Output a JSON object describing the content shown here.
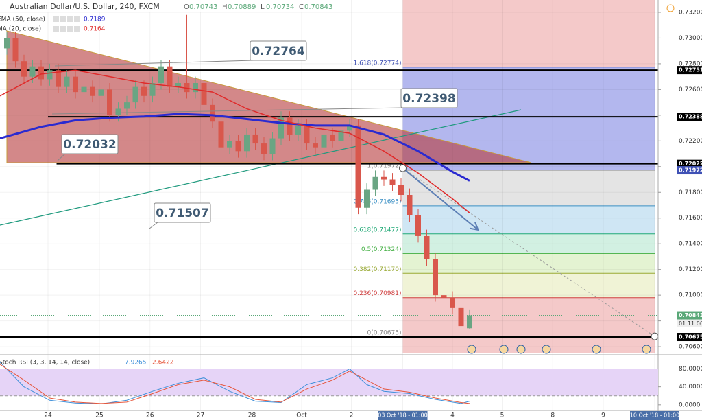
{
  "header": {
    "title": "Australian Dollar/U.S. Dollar, 240, FXCM",
    "ohlc": [
      {
        "key": "O",
        "value": 0.70743
      },
      {
        "key": "H",
        "value": 0.70889
      },
      {
        "key": "L",
        "value": 0.70734
      },
      {
        "key": "C",
        "value": 0.70843
      }
    ]
  },
  "indicators": [
    {
      "label": "EMA (50, close)",
      "value": 0.7189,
      "color": "#2a2ad0"
    },
    {
      "label": "MA (20, close)",
      "value": 0.7164,
      "color": "#e02a2a"
    }
  ],
  "chart_data": {
    "type": "candlestick",
    "xlim": [
      -0.8,
      76
    ],
    "ylim": [
      0.70547,
      0.73296
    ],
    "xticks": [
      {
        "value": 4.8,
        "label": "24"
      },
      {
        "value": 10.8,
        "label": "25"
      },
      {
        "value": 16.7,
        "label": "26"
      },
      {
        "value": 22.6,
        "label": "27"
      },
      {
        "value": 28.6,
        "label": "28"
      },
      {
        "value": 34.4,
        "label": "Oct"
      },
      {
        "value": 40.2,
        "label": "2"
      },
      {
        "value": 46.2,
        "label": "03 Oct '18 - 01:00"
      },
      {
        "value": 52,
        "label": "4"
      },
      {
        "value": 57.8,
        "label": "5"
      },
      {
        "value": 63.7,
        "label": "8"
      },
      {
        "value": 69.6,
        "label": "9"
      },
      {
        "value": 75.6,
        "label": "10 Oct '18 - 01:00"
      }
    ],
    "yticks": [
      {
        "value": 0.732,
        "label": "0.73200"
      },
      {
        "value": 0.73,
        "label": "0.73000"
      },
      {
        "value": 0.728,
        "label": "0.72800"
      },
      {
        "value": 0.726,
        "label": "0.72600"
      },
      {
        "value": 0.724,
        "label": "0.72400"
      },
      {
        "value": 0.722,
        "label": "0.72200"
      },
      {
        "value": 0.72,
        "label": "0.72000"
      },
      {
        "value": 0.718,
        "label": "0.71800"
      },
      {
        "value": 0.716,
        "label": "0.71600"
      },
      {
        "value": 0.714,
        "label": "0.71400"
      },
      {
        "value": 0.712,
        "label": "0.71200"
      },
      {
        "value": 0.71,
        "label": "0.71000"
      },
      {
        "value": 0.708,
        "label": "0.70800"
      },
      {
        "value": 0.706,
        "label": "0.70600"
      }
    ],
    "up_color": "#6aa583",
    "down_color": "#d9574c",
    "x": [
      0,
      1,
      2,
      3,
      4,
      5,
      6,
      7,
      8,
      9,
      10,
      11,
      12,
      13,
      14,
      15,
      16,
      17,
      18,
      19,
      20,
      21,
      22,
      23,
      24,
      25,
      26,
      27,
      28,
      29,
      30,
      31,
      32,
      33,
      34,
      35,
      36,
      37,
      38,
      39,
      40,
      41,
      42,
      43,
      44,
      45,
      46,
      47,
      48,
      49,
      50,
      51,
      52,
      53,
      54
    ],
    "open": [
      0.7292,
      0.73,
      0.7282,
      0.727,
      0.7278,
      0.7268,
      0.7275,
      0.7262,
      0.727,
      0.7258,
      0.7262,
      0.7255,
      0.726,
      0.724,
      0.7245,
      0.725,
      0.7262,
      0.7255,
      0.7265,
      0.7278,
      0.7262,
      0.7265,
      0.7258,
      0.7265,
      0.7248,
      0.7235,
      0.7215,
      0.722,
      0.7212,
      0.7225,
      0.7218,
      0.721,
      0.7222,
      0.7238,
      0.7225,
      0.7232,
      0.7218,
      0.7215,
      0.7225,
      0.722,
      0.7228,
      0.7232,
      0.7168,
      0.7182,
      0.7192,
      0.719,
      0.7186,
      0.7178,
      0.7162,
      0.7146,
      0.7128,
      0.71,
      0.7098,
      0.709,
      0.70743
    ],
    "high": [
      0.7305,
      0.7305,
      0.7287,
      0.7283,
      0.7283,
      0.728,
      0.728,
      0.7275,
      0.7275,
      0.7267,
      0.7267,
      0.7265,
      0.7265,
      0.725,
      0.7255,
      0.7267,
      0.7267,
      0.727,
      0.7283,
      0.7283,
      0.727,
      0.7318,
      0.727,
      0.727,
      0.7253,
      0.724,
      0.7225,
      0.7225,
      0.723,
      0.723,
      0.7223,
      0.7227,
      0.7243,
      0.7243,
      0.7237,
      0.7237,
      0.7223,
      0.723,
      0.723,
      0.7233,
      0.7237,
      0.7237,
      0.7187,
      0.7197,
      0.7197,
      0.7195,
      0.7191,
      0.7183,
      0.7167,
      0.7151,
      0.7133,
      0.7105,
      0.7103,
      0.7095,
      0.70889
    ],
    "low": [
      0.7287,
      0.7277,
      0.7265,
      0.7265,
      0.7263,
      0.7263,
      0.7257,
      0.7257,
      0.7253,
      0.7253,
      0.725,
      0.725,
      0.7235,
      0.7235,
      0.724,
      0.7245,
      0.725,
      0.725,
      0.726,
      0.7257,
      0.7257,
      0.7253,
      0.7253,
      0.7243,
      0.723,
      0.721,
      0.721,
      0.7207,
      0.7207,
      0.7213,
      0.7205,
      0.7205,
      0.7217,
      0.722,
      0.722,
      0.7213,
      0.721,
      0.721,
      0.7215,
      0.7215,
      0.7223,
      0.7163,
      0.7163,
      0.7177,
      0.7185,
      0.7181,
      0.7173,
      0.7157,
      0.7141,
      0.7123,
      0.7095,
      0.7093,
      0.7085,
      0.7071,
      0.70734
    ],
    "close": [
      0.73,
      0.7282,
      0.727,
      0.7278,
      0.7268,
      0.7275,
      0.7262,
      0.727,
      0.7258,
      0.7262,
      0.7255,
      0.726,
      0.724,
      0.7245,
      0.725,
      0.7262,
      0.7255,
      0.7265,
      0.7278,
      0.7262,
      0.7265,
      0.7258,
      0.7265,
      0.7248,
      0.7235,
      0.7215,
      0.722,
      0.7212,
      0.7225,
      0.7218,
      0.721,
      0.7222,
      0.7238,
      0.7225,
      0.7232,
      0.7218,
      0.7215,
      0.7225,
      0.722,
      0.7228,
      0.7232,
      0.7168,
      0.7182,
      0.7192,
      0.719,
      0.7186,
      0.7178,
      0.7162,
      0.7146,
      0.7128,
      0.71,
      0.7098,
      0.709,
      0.7076,
      0.70843
    ],
    "series": [
      {
        "name": "EMA (50, close)",
        "color": "#2a2ad0",
        "x": [
          -0.8,
          4,
          8,
          12,
          16,
          20,
          24,
          28,
          32,
          36,
          40,
          44,
          48,
          52,
          54
        ],
        "values": [
          0.7222,
          0.7231,
          0.7236,
          0.7238,
          0.7239,
          0.7241,
          0.724,
          0.7237,
          0.7234,
          0.7232,
          0.7232,
          0.7225,
          0.7212,
          0.7196,
          0.7189
        ]
      },
      {
        "name": "MA (20, close)",
        "color": "#e02a2a",
        "x": [
          -0.8,
          4,
          8,
          12,
          16,
          20,
          24,
          28,
          32,
          36,
          40,
          44,
          48,
          52,
          54
        ],
        "values": [
          0.7255,
          0.7272,
          0.7275,
          0.727,
          0.7265,
          0.7262,
          0.7258,
          0.7245,
          0.7236,
          0.723,
          0.7226,
          0.7212,
          0.7195,
          0.7175,
          0.7164
        ]
      }
    ],
    "triangle": {
      "x": [
        0,
        61.2,
        0
      ],
      "price": [
        0.73056,
        0.72031,
        0.72031
      ],
      "color": "#b5383a"
    },
    "trendline": {
      "x": [
        -0.8,
        60
      ],
      "price": [
        0.71545,
        0.72442
      ],
      "color": "#1f9a7e"
    },
    "arrow": {
      "x": [
        46.2,
        55
      ],
      "price": [
        0.71988,
        0.71508
      ],
      "color": "#5d7fb5"
    },
    "dashed": {
      "x": [
        46.2,
        75.6
      ],
      "price": [
        0.71988,
        0.7068
      ],
      "color": "#999999"
    },
    "hlines": [
      {
        "price": 0.72751,
        "x": [
          -0.8,
          76
        ]
      },
      {
        "price": 0.72388,
        "x": [
          4.8,
          76
        ]
      },
      {
        "price": 0.72022,
        "x": [
          5.8,
          76
        ]
      },
      {
        "price": 0.70675,
        "x": [
          -0.8,
          76
        ]
      }
    ],
    "fib": {
      "x": [
        46.2,
        75.6
      ],
      "top_fill": "#f4c9c9",
      "bottom_fill": "#f4c9c9",
      "levels": [
        {
          "label": "1.618(0.72774)",
          "price": 0.72774,
          "color": "#3f51b5",
          "fill": "#b3b7ee"
        },
        {
          "label": "1(0.71972)",
          "price": 0.71972,
          "color": "#888888",
          "fill": "#e4e4e4"
        },
        {
          "label": "0.786(0.71695)",
          "price": 0.71695,
          "color": "#3a8fc4",
          "fill": "#cfe6f4"
        },
        {
          "label": "0.618(0.71477)",
          "price": 0.71477,
          "color": "#22aa77",
          "fill": "#d2f0e2"
        },
        {
          "label": "0.5(0.71324)",
          "price": 0.71324,
          "color": "#3fae3f",
          "fill": "#e4f3d2"
        },
        {
          "label": "0.382(0.71170)",
          "price": 0.7117,
          "color": "#99aa33",
          "fill": "#f0f3d6"
        },
        {
          "label": "0.236(0.70981)",
          "price": 0.70981,
          "color": "#d04040",
          "fill": "#f4c9c9"
        },
        {
          "label": "0(0.70675)",
          "price": 0.70675,
          "color": "#888888",
          "fill": "#f4c9c9"
        }
      ]
    },
    "callouts": [
      0.72764,
      0.72398,
      0.72032,
      0.71507
    ],
    "price_labels": [
      {
        "value": 0.72751,
        "color": "#000000"
      },
      {
        "value": 0.72388,
        "color": "#000000"
      },
      {
        "value": 0.72022,
        "color": "#000000"
      },
      {
        "value": 0.71972,
        "color": "#3f51b5"
      },
      {
        "value": 0.70843,
        "color": "#5aa878"
      },
      {
        "value": 0.70675,
        "color": "#000000"
      }
    ],
    "countdown": "01:11:00"
  },
  "stoch": {
    "title": "Stoch RSI (3, 3, 14, 14, close)",
    "k": 7.9265,
    "d": 2.6422,
    "ylim": [
      -12.5,
      109.8
    ],
    "yticks": [
      {
        "value": 80,
        "label": "80.0000"
      },
      {
        "value": 40,
        "label": "40.0000"
      },
      {
        "value": 0,
        "label": "0.0000"
      }
    ],
    "band": [
      20,
      80
    ],
    "band_color": "#e6d4f7",
    "series": [
      {
        "name": "K",
        "color": "#3d8fd9",
        "x": [
          -0.8,
          2,
          5,
          8,
          11,
          14,
          17,
          20,
          23,
          26,
          29,
          32,
          35,
          38,
          40,
          42,
          44,
          47,
          50,
          53,
          54
        ],
        "values": [
          95,
          40,
          10,
          4,
          2,
          10,
          30,
          48,
          60,
          30,
          8,
          5,
          45,
          60,
          80,
          45,
          30,
          25,
          12,
          3,
          8
        ]
      },
      {
        "name": "D",
        "color": "#e6553a",
        "x": [
          -0.8,
          2,
          5,
          8,
          11,
          14,
          17,
          20,
          23,
          26,
          29,
          32,
          35,
          38,
          40,
          42,
          44,
          47,
          50,
          53,
          54
        ],
        "values": [
          90,
          55,
          15,
          6,
          3,
          6,
          25,
          45,
          55,
          40,
          12,
          6,
          35,
          55,
          75,
          55,
          35,
          28,
          15,
          5,
          3
        ]
      }
    ]
  }
}
